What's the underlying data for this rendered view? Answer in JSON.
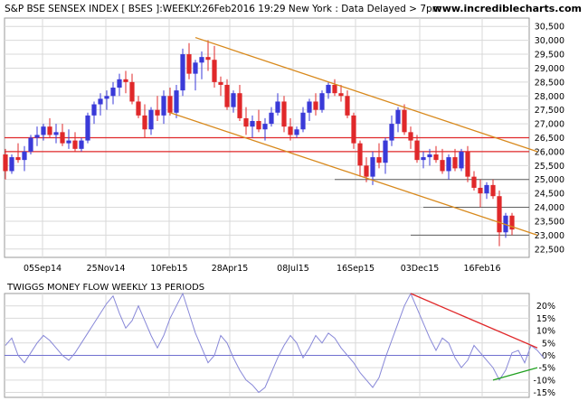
{
  "header": {
    "title": "S&P BSE SENSEX INDEX [ BSES ]:WEEKLY:26Feb2016 19:29 New York : Data Delayed > 7pm",
    "site": "www.incrediblecharts.com"
  },
  "colors": {
    "up": "#3a3ad8",
    "down": "#e0282a",
    "trendline": "#d8891c",
    "support": "#e0282a",
    "oscillator": "#8888d8",
    "osc_down_trend": "#e0282a",
    "osc_up_trend": "#20a020",
    "grid": "#d9d9d9"
  },
  "chart_data": [
    {
      "type": "candlestick",
      "title": "S&P BSE SENSEX INDEX [ BSES ]:WEEKLY:26Feb2016 19:29 New York : Data Delayed > 7pm",
      "x_tick_labels": [
        "05Sep14",
        "25Nov14",
        "10Feb15",
        "28Apr15",
        "08Jul15",
        "16Sep15",
        "03Dec15",
        "16Feb16"
      ],
      "y_tick_labels": [
        "30,500",
        "30,000",
        "29,500",
        "29,000",
        "28,500",
        "28,000",
        "27,500",
        "27,000",
        "26,500",
        "26,000",
        "25,500",
        "25,000",
        "24,500",
        "24,000",
        "23,500",
        "23,000",
        "22,500"
      ],
      "ylim": [
        22200,
        30800
      ],
      "grid": true,
      "candles": [
        {
          "o": 25900,
          "h": 26100,
          "l": 25000,
          "c": 25300
        },
        {
          "o": 25300,
          "h": 25900,
          "l": 25200,
          "c": 25800
        },
        {
          "o": 25800,
          "h": 26300,
          "l": 25600,
          "c": 25700
        },
        {
          "o": 25700,
          "h": 26200,
          "l": 25300,
          "c": 26000
        },
        {
          "o": 26000,
          "h": 26600,
          "l": 25900,
          "c": 26500
        },
        {
          "o": 26500,
          "h": 26900,
          "l": 26200,
          "c": 26600
        },
        {
          "o": 26600,
          "h": 27000,
          "l": 26400,
          "c": 26900
        },
        {
          "o": 26900,
          "h": 27200,
          "l": 26500,
          "c": 26600
        },
        {
          "o": 26600,
          "h": 27000,
          "l": 26300,
          "c": 26700
        },
        {
          "o": 26700,
          "h": 27000,
          "l": 26200,
          "c": 26300
        },
        {
          "o": 26300,
          "h": 26800,
          "l": 26100,
          "c": 26400
        },
        {
          "o": 26400,
          "h": 26700,
          "l": 26000,
          "c": 26100
        },
        {
          "o": 26100,
          "h": 26500,
          "l": 26000,
          "c": 26400
        },
        {
          "o": 26400,
          "h": 27400,
          "l": 26300,
          "c": 27300
        },
        {
          "o": 27300,
          "h": 27800,
          "l": 27000,
          "c": 27700
        },
        {
          "o": 27700,
          "h": 28100,
          "l": 27300,
          "c": 27900
        },
        {
          "o": 27900,
          "h": 28200,
          "l": 27500,
          "c": 28000
        },
        {
          "o": 28000,
          "h": 28500,
          "l": 27700,
          "c": 28300
        },
        {
          "o": 28300,
          "h": 28800,
          "l": 28000,
          "c": 28600
        },
        {
          "o": 28600,
          "h": 28900,
          "l": 28100,
          "c": 28500
        },
        {
          "o": 28500,
          "h": 28800,
          "l": 27700,
          "c": 27800
        },
        {
          "o": 27800,
          "h": 28000,
          "l": 27200,
          "c": 27300
        },
        {
          "o": 27300,
          "h": 27700,
          "l": 26500,
          "c": 26800
        },
        {
          "o": 26800,
          "h": 27600,
          "l": 26600,
          "c": 27500
        },
        {
          "o": 27500,
          "h": 28000,
          "l": 27100,
          "c": 27300
        },
        {
          "o": 27300,
          "h": 28200,
          "l": 27000,
          "c": 28000
        },
        {
          "o": 28000,
          "h": 28300,
          "l": 27300,
          "c": 27400
        },
        {
          "o": 27400,
          "h": 28400,
          "l": 27200,
          "c": 28200
        },
        {
          "o": 28200,
          "h": 29700,
          "l": 28000,
          "c": 29500
        },
        {
          "o": 29500,
          "h": 29900,
          "l": 28600,
          "c": 28800
        },
        {
          "o": 28800,
          "h": 29300,
          "l": 28200,
          "c": 29200
        },
        {
          "o": 29200,
          "h": 29600,
          "l": 28600,
          "c": 29400
        },
        {
          "o": 29400,
          "h": 30000,
          "l": 28900,
          "c": 29300
        },
        {
          "o": 29300,
          "h": 29800,
          "l": 28300,
          "c": 28500
        },
        {
          "o": 28500,
          "h": 28700,
          "l": 28000,
          "c": 28400
        },
        {
          "o": 28400,
          "h": 28600,
          "l": 27500,
          "c": 27600
        },
        {
          "o": 27600,
          "h": 28200,
          "l": 27400,
          "c": 28100
        },
        {
          "o": 28100,
          "h": 28400,
          "l": 27100,
          "c": 27200
        },
        {
          "o": 27200,
          "h": 27600,
          "l": 26600,
          "c": 26900
        },
        {
          "o": 26900,
          "h": 27300,
          "l": 26500,
          "c": 27100
        },
        {
          "o": 27100,
          "h": 27500,
          "l": 26700,
          "c": 26800
        },
        {
          "o": 26800,
          "h": 27200,
          "l": 26400,
          "c": 27000
        },
        {
          "o": 27000,
          "h": 27600,
          "l": 26900,
          "c": 27400
        },
        {
          "o": 27400,
          "h": 28100,
          "l": 27300,
          "c": 27800
        },
        {
          "o": 27800,
          "h": 28000,
          "l": 26700,
          "c": 26900
        },
        {
          "o": 26900,
          "h": 27200,
          "l": 26400,
          "c": 26600
        },
        {
          "o": 26600,
          "h": 26900,
          "l": 26500,
          "c": 26800
        },
        {
          "o": 26800,
          "h": 27600,
          "l": 26700,
          "c": 27400
        },
        {
          "o": 27400,
          "h": 27900,
          "l": 27100,
          "c": 27800
        },
        {
          "o": 27800,
          "h": 28100,
          "l": 27300,
          "c": 27500
        },
        {
          "o": 27500,
          "h": 28200,
          "l": 27400,
          "c": 28100
        },
        {
          "o": 28100,
          "h": 28500,
          "l": 27900,
          "c": 28400
        },
        {
          "o": 28400,
          "h": 28600,
          "l": 28000,
          "c": 28100
        },
        {
          "o": 28100,
          "h": 28400,
          "l": 27800,
          "c": 28000
        },
        {
          "o": 28000,
          "h": 28200,
          "l": 27200,
          "c": 27300
        },
        {
          "o": 27300,
          "h": 27400,
          "l": 26100,
          "c": 26300
        },
        {
          "o": 26300,
          "h": 26400,
          "l": 25100,
          "c": 25500
        },
        {
          "o": 25500,
          "h": 25800,
          "l": 24900,
          "c": 25100
        },
        {
          "o": 25100,
          "h": 26000,
          "l": 24800,
          "c": 25800
        },
        {
          "o": 25800,
          "h": 26300,
          "l": 25400,
          "c": 25600
        },
        {
          "o": 25600,
          "h": 26500,
          "l": 25200,
          "c": 26400
        },
        {
          "o": 26400,
          "h": 27300,
          "l": 26200,
          "c": 27000
        },
        {
          "o": 27000,
          "h": 27600,
          "l": 26700,
          "c": 27500
        },
        {
          "o": 27500,
          "h": 27700,
          "l": 26600,
          "c": 26700
        },
        {
          "o": 26700,
          "h": 26900,
          "l": 26100,
          "c": 26400
        },
        {
          "o": 26400,
          "h": 26600,
          "l": 25600,
          "c": 25700
        },
        {
          "o": 25700,
          "h": 26000,
          "l": 25400,
          "c": 25800
        },
        {
          "o": 25800,
          "h": 26100,
          "l": 25500,
          "c": 25900
        },
        {
          "o": 25900,
          "h": 26200,
          "l": 25600,
          "c": 25700
        },
        {
          "o": 25700,
          "h": 26100,
          "l": 25200,
          "c": 25300
        },
        {
          "o": 25300,
          "h": 25900,
          "l": 25000,
          "c": 25800
        },
        {
          "o": 25800,
          "h": 26100,
          "l": 25300,
          "c": 25400
        },
        {
          "o": 25400,
          "h": 26100,
          "l": 25300,
          "c": 26000
        },
        {
          "o": 26000,
          "h": 26200,
          "l": 24900,
          "c": 25100
        },
        {
          "o": 25100,
          "h": 25300,
          "l": 24600,
          "c": 24700
        },
        {
          "o": 24700,
          "h": 25000,
          "l": 24000,
          "c": 24500
        },
        {
          "o": 24500,
          "h": 24900,
          "l": 24300,
          "c": 24800
        },
        {
          "o": 24800,
          "h": 25000,
          "l": 24300,
          "c": 24400
        },
        {
          "o": 24400,
          "h": 24600,
          "l": 22600,
          "c": 23100
        },
        {
          "o": 23100,
          "h": 23800,
          "l": 22900,
          "c": 23700
        },
        {
          "o": 23700,
          "h": 23800,
          "l": 23000,
          "c": 23200
        }
      ],
      "annotations": {
        "support_levels": [
          26500,
          26000
        ],
        "grey_levels": [
          25000,
          24000,
          23000
        ],
        "upper_trendline": [
          {
            "i": 30,
            "v": 30100
          },
          {
            "i": 84,
            "v": 26000
          }
        ],
        "lower_trendline": [
          {
            "i": 26,
            "v": 27400
          },
          {
            "i": 84,
            "v": 23000
          }
        ]
      }
    },
    {
      "type": "line",
      "title": "TWIGGS MONEY FLOW WEEKLY 13 PERIODS",
      "y_tick_labels": [
        "20%",
        "15%",
        "10%",
        "5%",
        "0%",
        "-5%",
        "-10%",
        "-15%"
      ],
      "ylim": [
        -17,
        25
      ],
      "grid": true,
      "series": [
        {
          "values": [
            4,
            7,
            0,
            -3,
            1,
            5,
            8,
            6,
            3,
            0,
            -2,
            1,
            5,
            9,
            13,
            17,
            21,
            24,
            17,
            11,
            14,
            20,
            14,
            8,
            3,
            8,
            15,
            20,
            25,
            17,
            9,
            3,
            -3,
            0,
            8,
            5,
            -1,
            -6,
            -10,
            -12,
            -15,
            -13,
            -7,
            -1,
            4,
            8,
            5,
            -1,
            3,
            8,
            5,
            9,
            7,
            3,
            0,
            -3,
            -7,
            -10,
            -13,
            -9,
            -1,
            6,
            13,
            20,
            25,
            19,
            13,
            7,
            2,
            7,
            5,
            -1,
            -5,
            -2,
            4,
            1,
            -2,
            -5,
            -10,
            -6,
            1,
            2,
            -3,
            4,
            2,
            -1
          ]
        }
      ],
      "annotations": {
        "down_trendline": [
          {
            "i": 64,
            "v": 25
          },
          {
            "i": 84,
            "v": 3
          }
        ],
        "up_trendline": [
          {
            "i": 77,
            "v": -10
          },
          {
            "i": 84,
            "v": -5
          }
        ]
      }
    }
  ]
}
